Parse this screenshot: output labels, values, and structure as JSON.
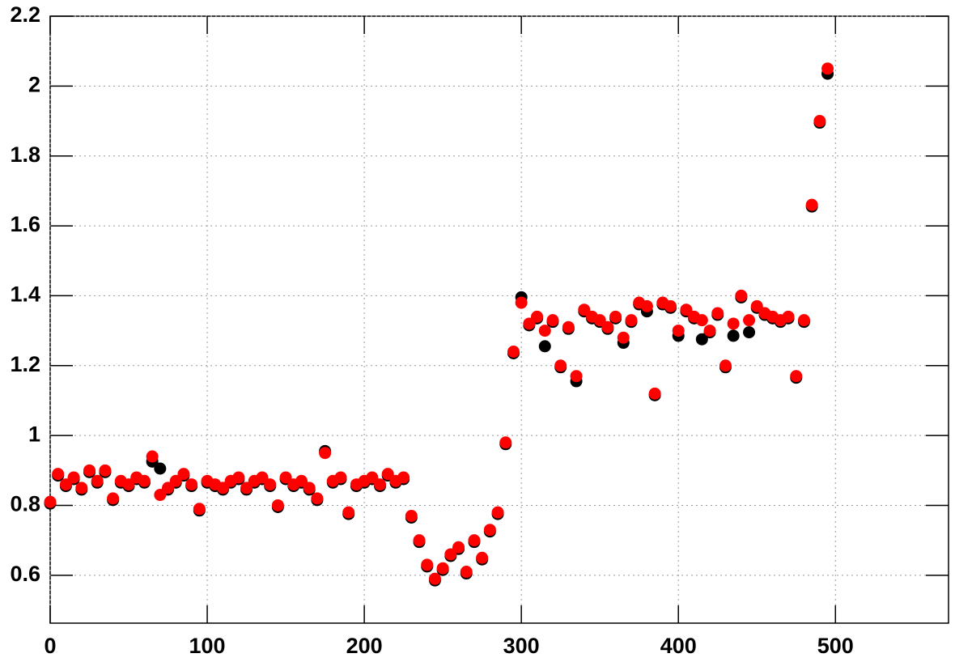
{
  "chart_data": {
    "type": "scatter",
    "x": [
      0,
      5,
      10,
      15,
      20,
      25,
      30,
      35,
      40,
      45,
      50,
      55,
      60,
      65,
      70,
      75,
      80,
      85,
      90,
      95,
      100,
      105,
      110,
      115,
      120,
      125,
      130,
      135,
      140,
      145,
      150,
      155,
      160,
      165,
      170,
      175,
      180,
      185,
      190,
      195,
      200,
      205,
      210,
      215,
      220,
      225,
      230,
      235,
      240,
      245,
      250,
      255,
      260,
      265,
      270,
      275,
      280,
      285,
      290,
      295,
      300,
      305,
      310,
      315,
      320,
      325,
      330,
      335,
      340,
      345,
      350,
      355,
      360,
      365,
      370,
      375,
      380,
      385,
      390,
      395,
      400,
      405,
      410,
      415,
      420,
      425,
      430,
      435,
      440,
      445,
      450,
      455,
      460,
      465,
      470,
      475,
      480,
      485,
      490,
      495
    ],
    "series": [
      {
        "color": "#000000",
        "values": [
          0.81,
          0.89,
          0.86,
          0.88,
          0.85,
          0.9,
          0.87,
          0.9,
          0.82,
          0.87,
          0.86,
          0.88,
          0.87,
          0.93,
          0.91,
          0.85,
          0.87,
          0.89,
          0.86,
          0.79,
          0.87,
          0.86,
          0.85,
          0.87,
          0.88,
          0.85,
          0.87,
          0.88,
          0.86,
          0.8,
          0.88,
          0.86,
          0.87,
          0.85,
          0.82,
          0.96,
          0.87,
          0.88,
          0.78,
          0.86,
          0.87,
          0.88,
          0.86,
          0.89,
          0.87,
          0.88,
          0.77,
          0.7,
          0.63,
          0.59,
          0.62,
          0.66,
          0.68,
          0.61,
          0.7,
          0.65,
          0.73,
          0.78,
          0.98,
          1.24,
          1.4,
          1.32,
          1.34,
          1.26,
          1.33,
          1.2,
          1.31,
          1.16,
          1.36,
          1.34,
          1.33,
          1.31,
          1.34,
          1.27,
          1.33,
          1.38,
          1.36,
          1.12,
          1.38,
          1.37,
          1.29,
          1.36,
          1.34,
          1.28,
          1.3,
          1.35,
          1.2,
          1.29,
          1.4,
          1.3,
          1.37,
          1.35,
          1.34,
          1.33,
          1.34,
          1.17,
          1.33,
          1.66,
          1.9,
          2.04
        ]
      },
      {
        "color": "#ff0000",
        "values": [
          0.81,
          0.89,
          0.86,
          0.88,
          0.85,
          0.9,
          0.87,
          0.9,
          0.82,
          0.87,
          0.86,
          0.88,
          0.87,
          0.94,
          0.83,
          0.85,
          0.87,
          0.89,
          0.86,
          0.79,
          0.87,
          0.86,
          0.85,
          0.87,
          0.88,
          0.85,
          0.87,
          0.88,
          0.86,
          0.8,
          0.88,
          0.86,
          0.87,
          0.85,
          0.82,
          0.95,
          0.87,
          0.88,
          0.78,
          0.86,
          0.87,
          0.88,
          0.86,
          0.89,
          0.87,
          0.88,
          0.77,
          0.7,
          0.63,
          0.59,
          0.62,
          0.66,
          0.68,
          0.61,
          0.7,
          0.65,
          0.73,
          0.78,
          0.98,
          1.24,
          1.38,
          1.32,
          1.34,
          1.3,
          1.33,
          1.2,
          1.31,
          1.17,
          1.36,
          1.34,
          1.33,
          1.31,
          1.34,
          1.28,
          1.33,
          1.38,
          1.37,
          1.12,
          1.38,
          1.37,
          1.3,
          1.36,
          1.34,
          1.33,
          1.3,
          1.35,
          1.2,
          1.32,
          1.4,
          1.33,
          1.37,
          1.35,
          1.34,
          1.33,
          1.34,
          1.17,
          1.33,
          1.66,
          1.9,
          2.05
        ]
      }
    ],
    "xlim": [
      0,
      572
    ],
    "ylim": [
      0.463,
      2.2
    ],
    "xticks": [
      0,
      100,
      200,
      300,
      400,
      500
    ],
    "yticks": [
      0.6,
      0.8,
      1,
      1.2,
      1.4,
      1.6,
      1.8,
      2,
      2.2
    ],
    "grid": true
  }
}
